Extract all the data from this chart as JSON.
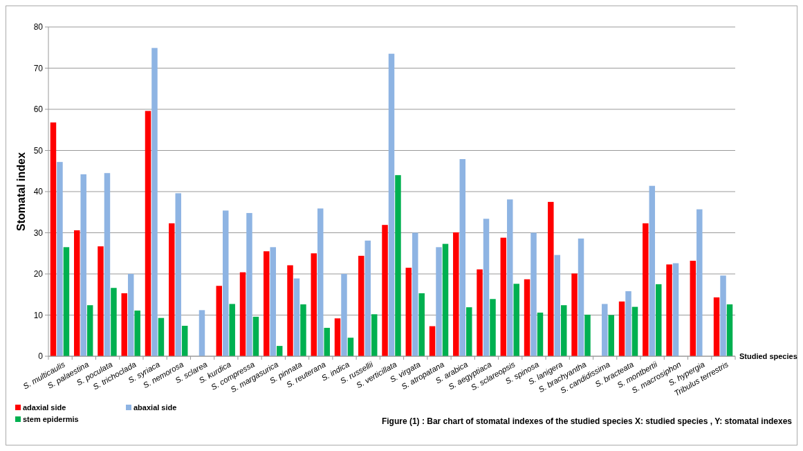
{
  "chart_data": {
    "type": "bar",
    "ylabel": "Stomatal index",
    "xlabel": "Studied species",
    "categories": [
      "S. multicaulis",
      "S. palaestina",
      "S. poculata",
      "S. trichoclada",
      "S. syriaca",
      "S. nemorosa",
      "S. sclarea",
      "S. kurdica",
      "S. compressa",
      "S. margasurica",
      "S. pinnata",
      "S. reuterana",
      "S. indica",
      "S. russellii",
      "S. verticillata",
      "S. virgata",
      "S. atropatana",
      "S. arabica",
      "S. aegyptiaca",
      "S. sclareopsis",
      "S. spinosa",
      "S. lanigera",
      "S. brachyantha",
      "S. candidissima",
      "S. bracteata",
      "S. montbertii",
      "S. macrosiphon",
      "S. hypergia",
      "Tribulus terrestris"
    ],
    "series": [
      {
        "name": "adaxial side",
        "color": "#ff0000",
        "values": [
          56.8,
          30.6,
          26.7,
          15.3,
          59.6,
          32.3,
          null,
          17.1,
          20.4,
          25.5,
          22.1,
          25.0,
          9.2,
          24.4,
          31.9,
          21.5,
          7.3,
          30.1,
          21.1,
          28.8,
          18.7,
          37.5,
          20.1,
          null,
          13.3,
          32.3,
          22.3,
          23.2,
          14.3
        ]
      },
      {
        "name": "abaxial side",
        "color": "#8eb4e3",
        "values": [
          47.2,
          44.2,
          44.5,
          20.0,
          74.9,
          39.6,
          11.2,
          35.4,
          34.8,
          26.5,
          18.9,
          35.9,
          20.0,
          28.1,
          73.5,
          30.0,
          26.5,
          47.9,
          33.4,
          38.1,
          30.0,
          24.6,
          28.6,
          12.7,
          15.8,
          41.4,
          22.6,
          35.7,
          19.6
        ]
      },
      {
        "name": "stem epidermis",
        "color": "#00b050",
        "values": [
          26.5,
          12.4,
          16.6,
          11.1,
          9.3,
          7.4,
          null,
          12.7,
          9.6,
          2.5,
          12.6,
          6.9,
          4.5,
          10.2,
          44.0,
          15.3,
          27.3,
          11.9,
          13.9,
          17.6,
          10.6,
          12.4,
          10.1,
          10.0,
          12.0,
          17.5,
          null,
          null,
          12.6
        ]
      }
    ],
    "ylim": [
      0,
      80
    ],
    "yticks": [
      0,
      10,
      20,
      30,
      40,
      50,
      60,
      70,
      80
    ],
    "grid": "y",
    "legend": "bottom left",
    "annotations": [
      "Figure (1) : Bar chart of stomatal indexes of the studied species    X: studied species , Y: stomatal indexes"
    ]
  }
}
